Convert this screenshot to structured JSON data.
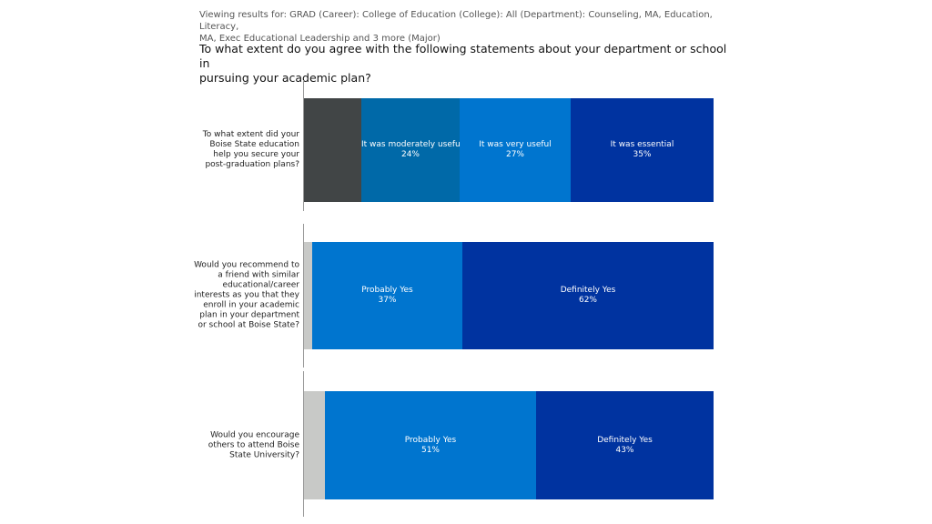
{
  "header": {
    "filter_line_1": "Viewing results for: GRAD (Career): College of Education (College): All (Department): Counseling, MA, Education, Literacy,",
    "filter_line_2": "MA, Exec Educational Leadership and 3 more (Major)",
    "question_line_1": "To what extent do you agree with the following statements about your department or school in",
    "question_line_2": "pursuing your academic plan?"
  },
  "chart_data": {
    "type": "bar",
    "orientation": "horizontal",
    "stacked": true,
    "xlim": [
      0,
      100
    ],
    "unit": "%",
    "grid": false,
    "rows": [
      {
        "label_lines": [
          "To what extent did your",
          "Boise State education",
          "help you secure your",
          "post-graduation plans?"
        ],
        "segments": [
          {
            "name": "",
            "value": 14,
            "label": "",
            "color": "#414546"
          },
          {
            "name": "It was moderately useful",
            "value": 24,
            "label": "24%",
            "color": "#0069A8"
          },
          {
            "name": "It was very useful",
            "value": 27,
            "label": "27%",
            "color": "#0075CF"
          },
          {
            "name": "It was essential",
            "value": 35,
            "label": "35%",
            "color": "#0033A0"
          }
        ]
      },
      {
        "label_lines": [
          "Would you recommend to",
          "a friend with similar",
          "educational/career",
          "interests as you that they",
          "enroll in your academic",
          "plan in your department",
          "or school at Boise State?"
        ],
        "segments": [
          {
            "name": "",
            "value": 2,
            "label": "",
            "color": "#C8C9C7"
          },
          {
            "name": "Probably Yes",
            "value": 37,
            "label": "37%",
            "color": "#0075CF"
          },
          {
            "name": "Definitely Yes",
            "value": 62,
            "label": "62%",
            "color": "#0033A0"
          }
        ]
      },
      {
        "label_lines": [
          "Would you encourage",
          "others to attend Boise",
          "State University?"
        ],
        "segments": [
          {
            "name": "",
            "value": 5,
            "label": "",
            "color": "#C8C9C7"
          },
          {
            "name": "Probably Yes",
            "value": 51,
            "label": "51%",
            "color": "#0075CF"
          },
          {
            "name": "Definitely Yes",
            "value": 43,
            "label": "43%",
            "color": "#0033A0"
          }
        ]
      }
    ]
  }
}
